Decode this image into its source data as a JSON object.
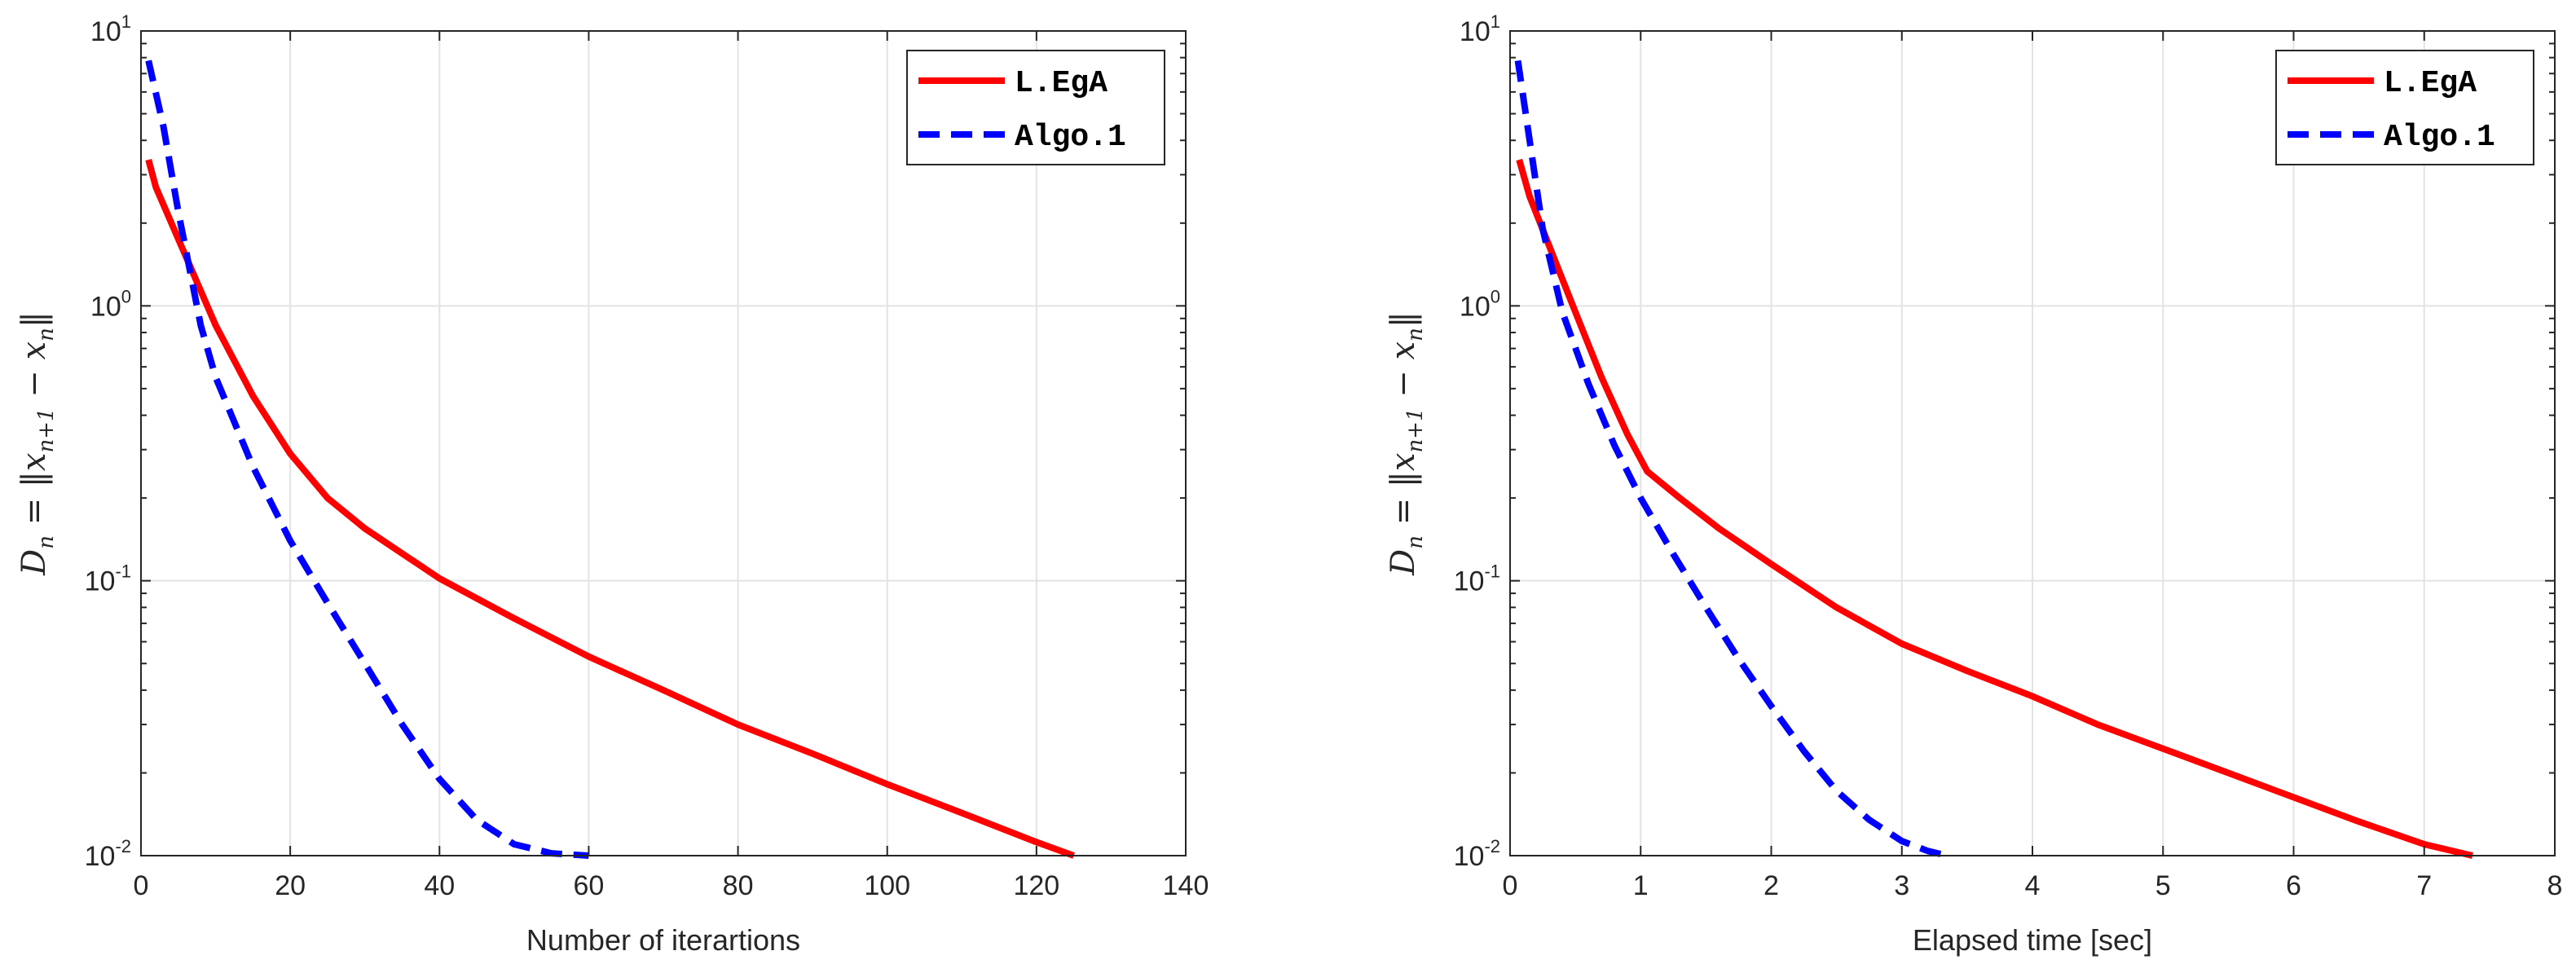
{
  "chart_data": [
    {
      "type": "line",
      "title": "",
      "xlabel": "Number of iterartions",
      "ylabel": "D_n = ||x_{n+1} - x_n||",
      "ylabel_display": {
        "main": "D",
        "sub": "n",
        "rest": " = ‖x",
        "sub2": "n+1",
        "rest2": " − x",
        "sub3": "n",
        "end": "‖"
      },
      "xscale": "linear",
      "yscale": "log",
      "xlim": [
        0,
        140
      ],
      "ylim": [
        0.01,
        10
      ],
      "xticks": [
        0,
        20,
        40,
        60,
        80,
        100,
        120,
        140
      ],
      "xtick_labels": [
        "0",
        "20",
        "40",
        "60",
        "80",
        "100",
        "120",
        "140"
      ],
      "yticks": [
        0.01,
        0.1,
        1,
        10
      ],
      "ytick_labels": [
        {
          "base": "10",
          "exp": "-2"
        },
        {
          "base": "10",
          "exp": "-1"
        },
        {
          "base": "10",
          "exp": "0"
        },
        {
          "base": "10",
          "exp": "1"
        }
      ],
      "grid": true,
      "legend_position": "top-right",
      "series": [
        {
          "name": "L.EgA",
          "color": "#ff0000",
          "style": "solid",
          "x": [
            1,
            2,
            5,
            10,
            15,
            20,
            25,
            30,
            40,
            50,
            60,
            70,
            80,
            90,
            100,
            110,
            120,
            125
          ],
          "y": [
            3.4,
            2.7,
            1.75,
            0.85,
            0.47,
            0.29,
            0.2,
            0.155,
            0.102,
            0.073,
            0.053,
            0.04,
            0.03,
            0.0235,
            0.0182,
            0.0143,
            0.0112,
            0.01
          ]
        },
        {
          "name": "Algo.1",
          "color": "#0000ff",
          "style": "dashed",
          "x": [
            1,
            3,
            5,
            8,
            10,
            15,
            20,
            25,
            30,
            35,
            40,
            45,
            50,
            55,
            60
          ],
          "y": [
            7.8,
            4.5,
            2.2,
            0.85,
            0.55,
            0.26,
            0.14,
            0.083,
            0.05,
            0.03,
            0.019,
            0.0135,
            0.011,
            0.0102,
            0.01
          ]
        }
      ]
    },
    {
      "type": "line",
      "title": "",
      "xlabel": "Elapsed time [sec]",
      "ylabel": "D_n = ||x_{n+1} - x_n||",
      "ylabel_display": {
        "main": "D",
        "sub": "n",
        "rest": " = ‖x",
        "sub2": "n+1",
        "rest2": " − x",
        "sub3": "n",
        "end": "‖"
      },
      "xscale": "linear",
      "yscale": "log",
      "xlim": [
        0,
        8
      ],
      "ylim": [
        0.01,
        10
      ],
      "xticks": [
        0,
        1,
        2,
        3,
        4,
        5,
        6,
        7,
        8
      ],
      "xtick_labels": [
        "0",
        "1",
        "2",
        "3",
        "4",
        "5",
        "6",
        "7",
        "8"
      ],
      "yticks": [
        0.01,
        0.1,
        1,
        10
      ],
      "ytick_labels": [
        {
          "base": "10",
          "exp": "-2"
        },
        {
          "base": "10",
          "exp": "-1"
        },
        {
          "base": "10",
          "exp": "0"
        },
        {
          "base": "10",
          "exp": "1"
        }
      ],
      "grid": true,
      "legend_position": "top-right",
      "series": [
        {
          "name": "L.EgA",
          "color": "#ff0000",
          "style": "solid",
          "x": [
            0.07,
            0.15,
            0.3,
            0.5,
            0.7,
            0.9,
            1.05,
            1.3,
            1.6,
            2.0,
            2.5,
            3.0,
            3.5,
            4.0,
            4.5,
            5.0,
            5.5,
            6.0,
            6.5,
            7.0,
            7.37
          ],
          "y": [
            3.4,
            2.5,
            1.65,
            0.95,
            0.55,
            0.34,
            0.25,
            0.2,
            0.155,
            0.115,
            0.08,
            0.059,
            0.047,
            0.038,
            0.03,
            0.0245,
            0.02,
            0.0163,
            0.0133,
            0.011,
            0.01
          ]
        },
        {
          "name": "Algo.1",
          "color": "#0000ff",
          "style": "dashed",
          "x": [
            0.06,
            0.15,
            0.25,
            0.4,
            0.6,
            0.8,
            1.0,
            1.25,
            1.5,
            1.75,
            2.0,
            2.25,
            2.5,
            2.75,
            3.0,
            3.2,
            3.35
          ],
          "y": [
            7.8,
            4.0,
            1.9,
            0.95,
            0.52,
            0.31,
            0.2,
            0.125,
            0.08,
            0.052,
            0.035,
            0.024,
            0.0172,
            0.0135,
            0.0113,
            0.0104,
            0.01
          ]
        }
      ]
    }
  ]
}
